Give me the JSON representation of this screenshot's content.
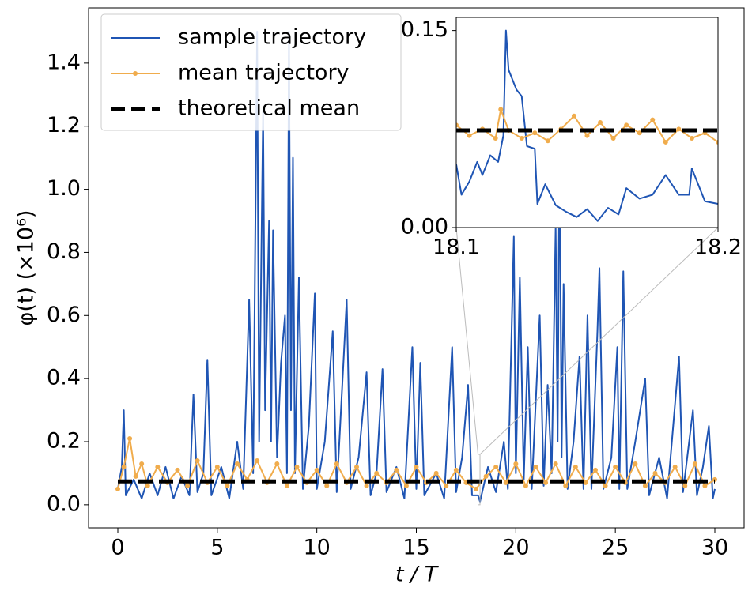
{
  "chart_data": [
    {
      "type": "line",
      "xlabel": "t / T",
      "ylabel": "φ(t) (×10⁶)",
      "xlim": [
        -1.47,
        31.47
      ],
      "ylim": [
        -0.073,
        1.575
      ],
      "xticks": [
        0,
        5,
        10,
        15,
        20,
        25,
        30
      ],
      "yticks": [
        {
          "value": 0,
          "label": "0.0"
        },
        {
          "value": 0.2,
          "label": "0.2"
        },
        {
          "value": 0.4,
          "label": "0.4"
        },
        {
          "value": 0.6,
          "label": "0.6"
        },
        {
          "value": 0.8,
          "label": "0.8"
        },
        {
          "value": 1.0,
          "label": "1.0"
        },
        {
          "value": 1.2,
          "label": "1.2"
        },
        {
          "value": 1.4,
          "label": "1.4"
        }
      ],
      "legend": "upper left",
      "series": [
        {
          "name": "sample trajectory",
          "color": "#1f55b4",
          "marker": false,
          "dashed": false,
          "x": [
            0,
            0.2,
            0.3,
            0.4,
            0.8,
            1.2,
            1.6,
            2.0,
            2.4,
            2.8,
            3.2,
            3.6,
            3.8,
            4.0,
            4.3,
            4.5,
            4.7,
            5.2,
            5.6,
            6.0,
            6.3,
            6.6,
            6.8,
            7.0,
            7.1,
            7.3,
            7.4,
            7.6,
            7.7,
            7.8,
            8.0,
            8.2,
            8.4,
            8.5,
            8.6,
            8.7,
            8.8,
            8.9,
            9.1,
            9.3,
            9.6,
            9.9,
            10.0,
            10.4,
            10.8,
            11.0,
            11.5,
            11.7,
            12.1,
            12.5,
            12.7,
            13.0,
            13.3,
            13.5,
            14.0,
            14.4,
            14.8,
            15.0,
            15.2,
            15.4,
            16.0,
            16.4,
            16.8,
            17.0,
            17.3,
            17.6,
            17.8,
            18.1,
            18.2,
            18.6,
            19.0,
            19.4,
            19.6,
            19.9,
            20.0,
            20.2,
            20.4,
            20.6,
            20.8,
            21.2,
            21.4,
            21.6,
            21.8,
            22.0,
            22.1,
            22.2,
            22.3,
            22.4,
            22.6,
            22.9,
            23.2,
            23.4,
            23.6,
            23.8,
            24.1,
            24.2,
            24.4,
            24.8,
            25.1,
            25.2,
            25.4,
            25.6,
            26.0,
            26.5,
            26.7,
            27.2,
            27.6,
            28.2,
            28.4,
            28.9,
            29.1,
            29.4,
            29.7,
            29.9,
            30.0
          ],
          "values": [
            0.05,
            0.12,
            0.3,
            0.03,
            0.08,
            0.02,
            0.1,
            0.03,
            0.12,
            0.02,
            0.09,
            0.03,
            0.35,
            0.04,
            0.1,
            0.46,
            0.03,
            0.12,
            0.02,
            0.2,
            0.05,
            0.65,
            0.1,
            1.5,
            0.2,
            1.25,
            0.3,
            0.9,
            0.2,
            0.87,
            0.15,
            0.45,
            0.6,
            0.1,
            1.5,
            0.3,
            1.1,
            0.1,
            0.72,
            0.05,
            0.25,
            0.67,
            0.05,
            0.2,
            0.55,
            0.04,
            0.65,
            0.05,
            0.15,
            0.42,
            0.03,
            0.1,
            0.43,
            0.04,
            0.12,
            0.02,
            0.5,
            0.05,
            0.45,
            0.03,
            0.1,
            0.02,
            0.5,
            0.04,
            0.15,
            0.38,
            0.03,
            0.03,
            0.01,
            0.12,
            0.04,
            0.2,
            0.05,
            0.85,
            0.1,
            0.72,
            0.08,
            0.5,
            0.05,
            0.6,
            0.06,
            0.38,
            0.1,
            0.88,
            0.2,
            1.2,
            0.15,
            0.7,
            0.05,
            0.2,
            0.47,
            0.05,
            0.6,
            0.05,
            0.55,
            0.75,
            0.05,
            0.15,
            0.5,
            0.05,
            0.74,
            0.05,
            0.2,
            0.4,
            0.03,
            0.15,
            0.02,
            0.47,
            0.04,
            0.3,
            0.03,
            0.12,
            0.25,
            0.02,
            0.05
          ]
        },
        {
          "name": "mean trajectory",
          "color": "#f0ac4c",
          "marker": true,
          "dashed": false,
          "x": [
            0,
            0.3,
            0.6,
            0.9,
            1.2,
            1.5,
            2,
            2.5,
            3,
            3.5,
            4,
            4.5,
            5,
            5.5,
            6,
            6.5,
            7,
            7.5,
            8,
            8.5,
            9,
            9.5,
            10,
            10.5,
            11,
            11.5,
            12,
            12.5,
            13,
            13.5,
            14,
            14.5,
            15,
            15.5,
            16,
            16.5,
            17,
            17.5,
            18,
            18.5,
            19,
            19.5,
            20,
            20.5,
            21,
            21.5,
            22,
            22.5,
            23,
            23.5,
            24,
            24.5,
            25,
            25.5,
            26,
            26.5,
            27,
            27.5,
            28,
            28.5,
            29,
            29.5,
            30
          ],
          "values": [
            0.05,
            0.12,
            0.21,
            0.09,
            0.13,
            0.06,
            0.12,
            0.07,
            0.11,
            0.06,
            0.14,
            0.07,
            0.12,
            0.06,
            0.13,
            0.08,
            0.14,
            0.07,
            0.13,
            0.06,
            0.12,
            0.07,
            0.11,
            0.06,
            0.13,
            0.07,
            0.12,
            0.06,
            0.1,
            0.07,
            0.11,
            0.06,
            0.12,
            0.07,
            0.1,
            0.06,
            0.11,
            0.07,
            0.05,
            0.09,
            0.12,
            0.07,
            0.13,
            0.06,
            0.12,
            0.07,
            0.13,
            0.06,
            0.12,
            0.07,
            0.11,
            0.06,
            0.12,
            0.07,
            0.13,
            0.06,
            0.1,
            0.07,
            0.12,
            0.06,
            0.13,
            0.06,
            0.08
          ]
        },
        {
          "name": "theoretical mean",
          "color": "#000000",
          "marker": false,
          "dashed": true,
          "x": [
            0,
            30
          ],
          "values": [
            0.074,
            0.074
          ]
        }
      ]
    },
    {
      "type": "line",
      "xlim": [
        18.1,
        18.2
      ],
      "ylim": [
        0,
        0.16
      ],
      "xticks": [
        18.1,
        18.2
      ],
      "yticks": [
        {
          "value": 0,
          "label": "0.00"
        },
        {
          "value": 0.15,
          "label": "0.15"
        }
      ],
      "series": [
        {
          "color": "#1f55b4",
          "marker": false,
          "dashed": false,
          "x": [
            18.1,
            18.102,
            18.105,
            18.108,
            18.11,
            18.113,
            18.116,
            18.118,
            18.119,
            18.12,
            18.123,
            18.125,
            18.127,
            18.13,
            18.131,
            18.134,
            18.138,
            18.142,
            18.146,
            18.15,
            18.154,
            18.158,
            18.162,
            18.165,
            18.17,
            18.175,
            18.18,
            18.185,
            18.189,
            18.19,
            18.195,
            18.2
          ],
          "values": [
            0.048,
            0.025,
            0.035,
            0.05,
            0.04,
            0.055,
            0.05,
            0.07,
            0.15,
            0.12,
            0.105,
            0.1,
            0.062,
            0.06,
            0.018,
            0.033,
            0.017,
            0.012,
            0.008,
            0.014,
            0.005,
            0.015,
            0.01,
            0.03,
            0.022,
            0.025,
            0.04,
            0.025,
            0.025,
            0.045,
            0.02,
            0.018
          ]
        },
        {
          "color": "#f0ac4c",
          "marker": true,
          "dashed": false,
          "x": [
            18.1,
            18.105,
            18.11,
            18.115,
            18.117,
            18.12,
            18.125,
            18.13,
            18.135,
            18.14,
            18.145,
            18.15,
            18.155,
            18.16,
            18.165,
            18.17,
            18.175,
            18.18,
            18.185,
            18.19,
            18.195,
            18.2
          ],
          "values": [
            0.078,
            0.07,
            0.075,
            0.068,
            0.09,
            0.074,
            0.068,
            0.072,
            0.066,
            0.075,
            0.085,
            0.07,
            0.08,
            0.068,
            0.078,
            0.072,
            0.082,
            0.065,
            0.075,
            0.068,
            0.072,
            0.065
          ]
        },
        {
          "color": "#000000",
          "marker": false,
          "dashed": true,
          "x": [
            18.1,
            18.2
          ],
          "values": [
            0.074,
            0.074
          ]
        }
      ]
    }
  ]
}
